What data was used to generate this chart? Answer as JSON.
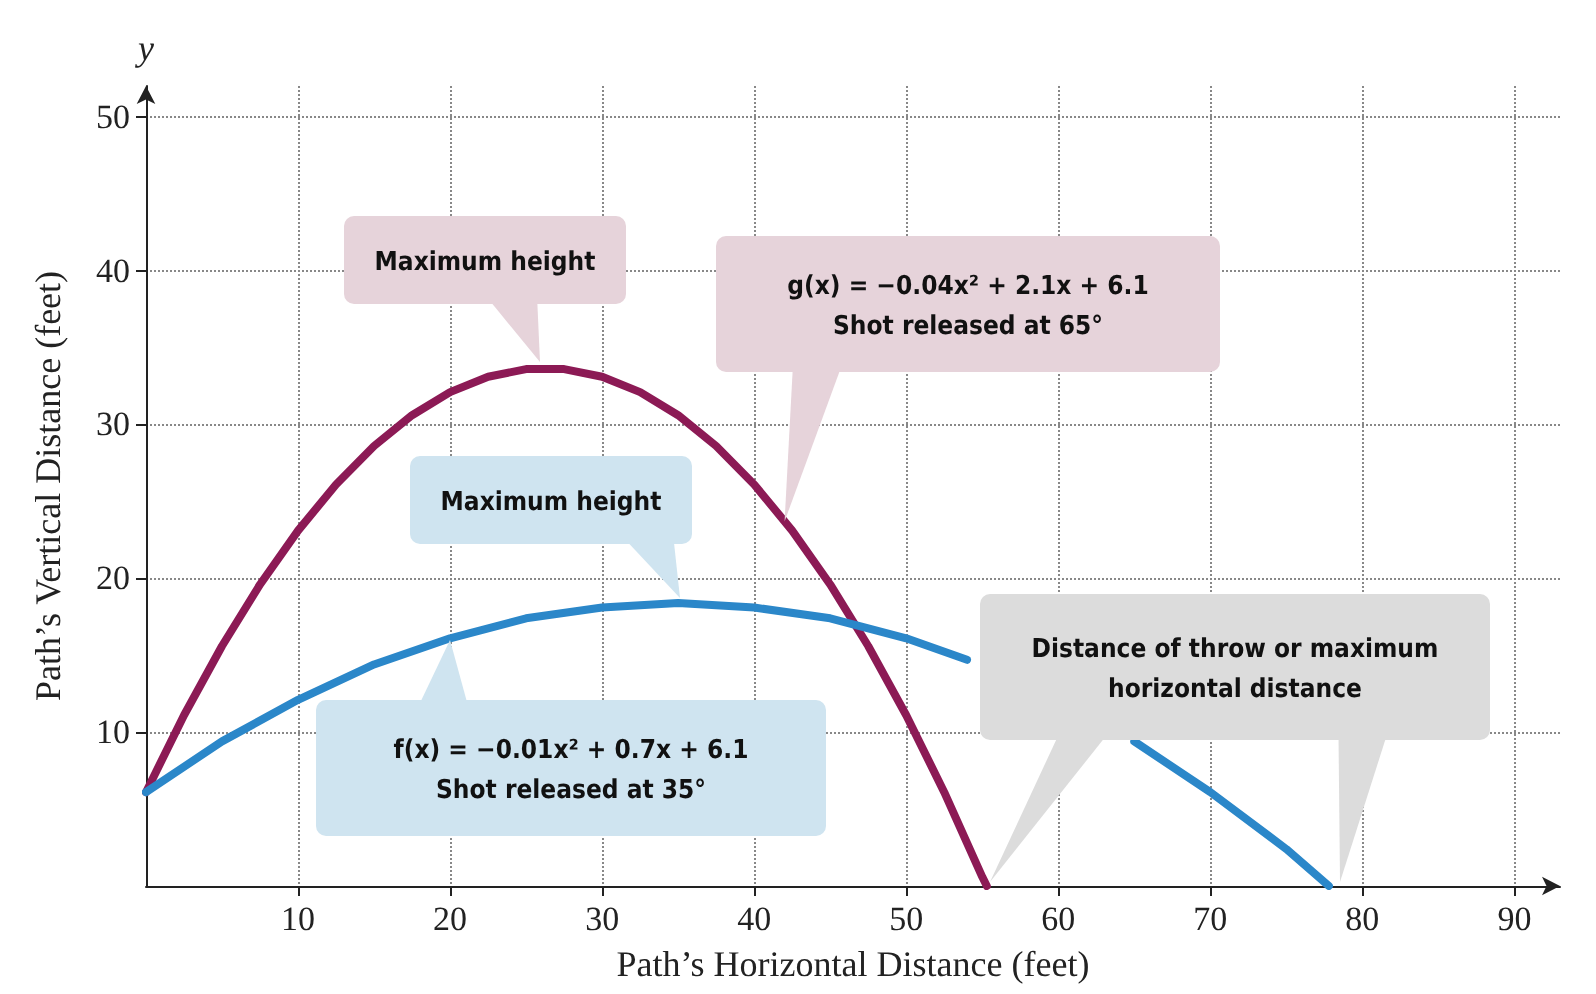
{
  "chart_data": {
    "type": "line",
    "xlabel": "Path’s Horizontal Distance (feet)",
    "ylabel": "Path’s Vertical Distance (feet)",
    "xlim": [
      0,
      93
    ],
    "ylim": [
      0,
      52
    ],
    "xticks": [
      10,
      20,
      30,
      40,
      50,
      60,
      70,
      80,
      90
    ],
    "yticks": [
      10,
      20,
      30,
      40,
      50
    ],
    "grid": "dotted",
    "marker": "none",
    "line_style": "solid",
    "series": [
      {
        "color": "#8c1a55",
        "x": [
          0,
          2.5,
          5,
          7.5,
          10,
          12.5,
          15,
          17.5,
          20,
          22.5,
          25,
          27.5,
          30,
          32.5,
          35,
          37.5,
          40,
          42.5,
          45,
          47.5,
          50,
          52.5,
          55,
          55.3
        ],
        "values": [
          6.1,
          11.1,
          15.6,
          19.6,
          23.1,
          26.1,
          28.6,
          30.6,
          32.1,
          33.1,
          33.6,
          33.6,
          33.1,
          32.1,
          30.6,
          28.6,
          26.1,
          23.1,
          19.6,
          15.6,
          11.1,
          6.1,
          0.6,
          0
        ]
      },
      {
        "color": "#2b87c9",
        "x": [
          0,
          5,
          10,
          15,
          20,
          25,
          30,
          35,
          40,
          45,
          50,
          54,
          60,
          65,
          70,
          75,
          77.8
        ],
        "values": [
          6.1,
          9.4,
          12.1,
          14.4,
          16.1,
          17.4,
          18.1,
          18.4,
          18.1,
          17.4,
          16.1,
          14.7,
          null,
          9.4,
          6.1,
          2.4,
          0
        ]
      }
    ],
    "annotations": [
      "y",
      "Maximum height",
      {
        "text": "g(x) = −0.04x² + 2.1x + 6.1\nShot released at 65°",
        "x": 42,
        "y": 23.7
      },
      "Maximum height",
      "f(x) = −0.01x² + 0.7x + 6.1\nShot released at 35°",
      "Distance of throw or maximum\nhorizontal distance"
    ]
  }
}
